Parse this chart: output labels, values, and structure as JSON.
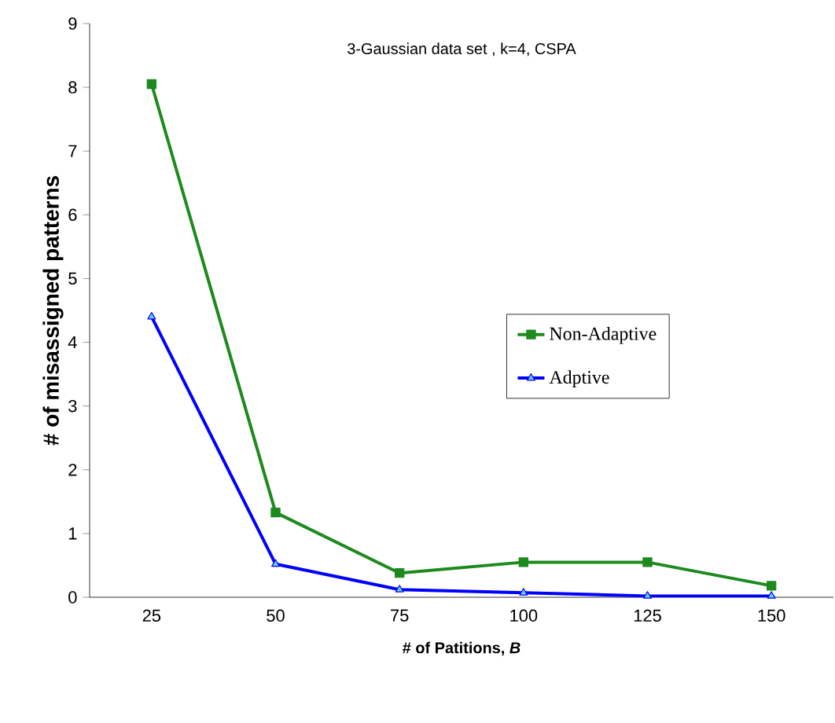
{
  "chart_data": {
    "type": "line",
    "title": "3-Gaussian data set , k=4,  CSPA",
    "xlabel": "# of Patitions, *B*",
    "ylabel": "# of misassigned patterns",
    "categories": [
      "25",
      "50",
      "75",
      "100",
      "125",
      "150"
    ],
    "series": [
      {
        "name": "Non-Adaptive",
        "color": "#1e8a1e",
        "marker": "square",
        "values": [
          8.05,
          1.33,
          0.38,
          0.55,
          0.55,
          0.18
        ]
      },
      {
        "name": "Adptive",
        "color": "#0000ff",
        "marker": "triangle",
        "values": [
          4.4,
          0.52,
          0.12,
          0.07,
          0.02,
          0.02
        ]
      }
    ],
    "ylim": [
      0,
      9
    ],
    "yticks": [
      0,
      1,
      2,
      3,
      4,
      5,
      6,
      7,
      8,
      9
    ],
    "grid": false,
    "legend": "center right",
    "line_style": "solid"
  }
}
